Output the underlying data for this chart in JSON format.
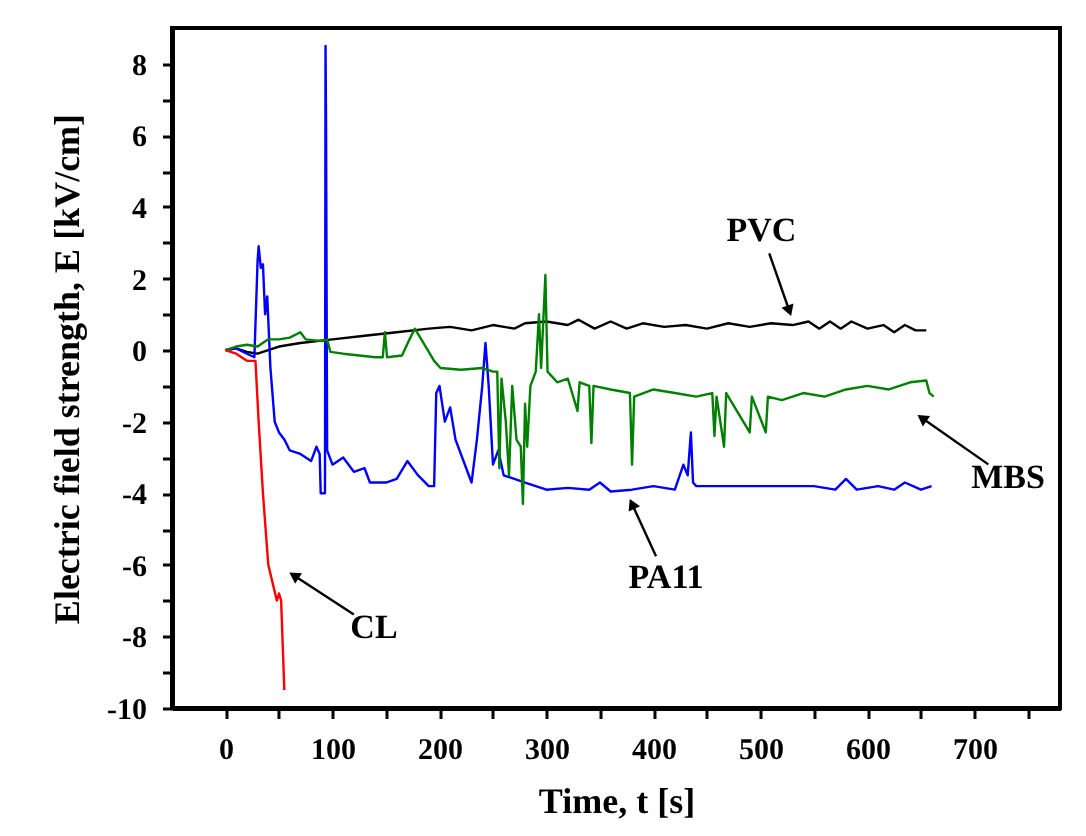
{
  "chart_data": {
    "type": "line",
    "xlabel": "Time, t [s]",
    "ylabel": "Electric field strength, E [kV/cm]",
    "xlim": [
      -50,
      780
    ],
    "ylim": [
      -10,
      9
    ],
    "xticks": [
      0,
      {
        "value": 50,
        "label": null
      },
      100,
      {
        "value": 150,
        "label": null
      },
      200,
      {
        "value": 250,
        "label": null
      },
      300,
      {
        "value": 350,
        "label": null
      },
      400,
      {
        "value": 450,
        "label": null
      },
      500,
      {
        "value": 550,
        "label": null
      },
      600,
      {
        "value": 650,
        "label": null
      },
      700,
      {
        "value": 750,
        "label": null
      }
    ],
    "yticks": [
      -10,
      {
        "value": -9,
        "label": null
      },
      -8,
      {
        "value": -7,
        "label": null
      },
      -6,
      {
        "value": -5,
        "label": null
      },
      -4,
      {
        "value": -3,
        "label": null
      },
      -2,
      {
        "value": -1,
        "label": null
      },
      0,
      {
        "value": 1,
        "label": null
      },
      2,
      {
        "value": 3,
        "label": null
      },
      4,
      {
        "value": 5,
        "label": null
      },
      6,
      {
        "value": 7,
        "label": null
      },
      8
    ],
    "line_style": "solid",
    "series": [
      {
        "color": "#000000",
        "x": [
          0,
          10,
          20,
          30,
          40,
          50,
          70,
          100,
          130,
          160,
          190,
          210,
          230,
          250,
          270,
          280,
          300,
          320,
          330,
          345,
          360,
          375,
          390,
          410,
          430,
          450,
          470,
          490,
          510,
          530,
          545,
          555,
          565,
          575,
          585,
          600,
          615,
          625,
          635,
          645,
          655
        ],
        "values": [
          0,
          0.05,
          -0.05,
          -0.1,
          0,
          0.1,
          0.2,
          0.3,
          0.4,
          0.5,
          0.6,
          0.65,
          0.55,
          0.7,
          0.6,
          0.75,
          0.8,
          0.7,
          0.85,
          0.6,
          0.8,
          0.6,
          0.75,
          0.65,
          0.7,
          0.6,
          0.75,
          0.65,
          0.75,
          0.7,
          0.8,
          0.6,
          0.8,
          0.6,
          0.8,
          0.6,
          0.7,
          0.5,
          0.7,
          0.55,
          0.55
        ]
      },
      {
        "color": "#0000ff",
        "x": [
          0,
          10,
          20,
          27,
          30,
          31,
          33,
          35,
          37,
          39,
          42,
          46,
          50,
          55,
          60,
          70,
          80,
          85,
          88,
          89,
          93,
          93.5,
          94,
          95,
          100,
          110,
          120,
          130,
          135,
          150,
          160,
          170,
          180,
          190,
          195,
          197,
          200,
          205,
          210,
          215,
          225,
          230,
          235,
          240,
          243,
          246,
          250,
          255,
          260,
          270,
          280,
          290,
          300,
          320,
          340,
          350,
          360,
          380,
          400,
          420,
          428,
          432,
          435,
          437,
          440,
          500,
          550,
          570,
          580,
          590,
          610,
          625,
          635,
          650,
          660
        ],
        "values": [
          0,
          0.05,
          -0.1,
          -0.2,
          2.5,
          2.9,
          2.3,
          2.4,
          1,
          1.5,
          -0.5,
          -2,
          -2.3,
          -2.5,
          -2.8,
          -2.9,
          -3.1,
          -2.7,
          -2.9,
          -4,
          -4,
          8.5,
          6.3,
          -2.8,
          -3.2,
          -3,
          -3.4,
          -3.3,
          -3.7,
          -3.7,
          -3.6,
          -3.1,
          -3.5,
          -3.8,
          -3.8,
          -1.2,
          -1,
          -2,
          -1.6,
          -2.5,
          -3.3,
          -3.7,
          -2.5,
          -1,
          0.2,
          -1,
          -3.2,
          -2.8,
          -3.5,
          -3.6,
          -3.7,
          -3.8,
          -3.9,
          -3.85,
          -3.9,
          -3.7,
          -3.95,
          -3.9,
          -3.8,
          -3.9,
          -3.2,
          -3.5,
          -2.3,
          -3.7,
          -3.8,
          -3.8,
          -3.8,
          -3.9,
          -3.6,
          -3.9,
          -3.8,
          -3.9,
          -3.7,
          -3.9,
          -3.8
        ]
      },
      {
        "color": "#008000",
        "x": [
          0,
          10,
          20,
          30,
          40,
          50,
          60,
          70,
          75,
          90,
          95,
          98,
          110,
          125,
          140,
          147,
          149,
          151,
          165,
          172,
          177,
          185,
          195,
          201,
          220,
          240,
          250,
          254,
          256,
          258,
          262,
          265,
          268,
          272,
          276,
          278,
          280,
          282,
          285,
          290,
          293,
          295,
          299,
          301,
          310,
          320,
          329,
          331,
          340,
          342,
          344,
          360,
          378,
          380,
          382,
          400,
          420,
          440,
          455,
          457,
          459,
          466,
          468,
          490,
          492,
          505,
          507,
          520,
          540,
          560,
          580,
          600,
          620,
          640,
          655,
          658,
          662
        ],
        "values": [
          0,
          0.1,
          0.15,
          0.1,
          0.3,
          0.3,
          0.35,
          0.5,
          0.3,
          0.25,
          0.3,
          -0.05,
          -0.1,
          -0.15,
          -0.2,
          -0.2,
          0.5,
          -0.2,
          -0.15,
          0.3,
          0.6,
          0.2,
          -0.3,
          -0.5,
          -0.55,
          -0.5,
          -0.6,
          -0.6,
          -3.3,
          -0.8,
          -2,
          -3.5,
          -1,
          -2.5,
          -2.7,
          -4.3,
          -1.5,
          -2.7,
          -1,
          -0.6,
          1,
          -0.5,
          2.1,
          -0.6,
          -0.9,
          -0.8,
          -1.7,
          -0.9,
          -1,
          -2.6,
          -1,
          -1.1,
          -1.2,
          -3.2,
          -1.3,
          -1.1,
          -1.2,
          -1.3,
          -1.2,
          -2.4,
          -1.3,
          -2.7,
          -1.2,
          -2.3,
          -1.3,
          -2.3,
          -1.3,
          -1.4,
          -1.2,
          -1.3,
          -1.1,
          -1.0,
          -1.1,
          -0.9,
          -0.85,
          -1.2,
          -1.3
        ]
      },
      {
        "color": "#ff0000",
        "x": [
          0,
          10,
          20,
          28,
          31,
          35,
          40,
          44,
          48,
          50,
          52,
          55
        ],
        "values": [
          0,
          -0.1,
          -0.3,
          -0.3,
          -2,
          -4,
          -6,
          -6.5,
          -7,
          -6.8,
          -7,
          -9.5
        ]
      }
    ],
    "annotations": [
      {
        "text": "PVC",
        "x": 527,
        "y": 1.1
      },
      {
        "text": "MBS",
        "x": 651,
        "y": -1.9
      },
      {
        "text": "PA11",
        "x": 380,
        "y": -4.3
      },
      {
        "text": "CL",
        "x": 64,
        "y": -6.3
      }
    ]
  }
}
